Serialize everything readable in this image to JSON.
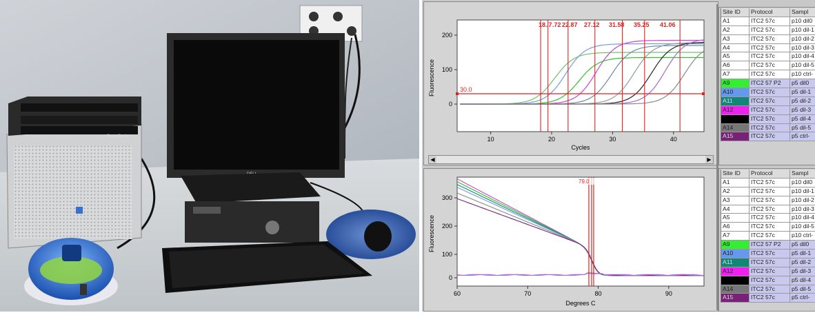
{
  "amplification_chart": {
    "ylabel": "Fluorescence",
    "xlabel": "Cycles",
    "yticks": [
      "200",
      "100",
      "0"
    ],
    "xticks": [
      "10",
      "20",
      "30",
      "40"
    ],
    "threshold_label": "30.0",
    "ct_labels": [
      "18.",
      ".7",
      ".72",
      "22.87",
      "27.12",
      "31.58",
      "35.25",
      "41.06"
    ]
  },
  "melt_chart": {
    "ylabel": "Fluorescence",
    "xlabel": "Degrees C",
    "yticks": [
      "300",
      "200",
      "100",
      "0"
    ],
    "xticks": [
      "60",
      "70",
      "80",
      "90"
    ],
    "peak_label": "79.0"
  },
  "table_top": {
    "headers": [
      "Site ID",
      "Protocol",
      "Sampl"
    ],
    "rows": [
      {
        "site": "A1",
        "protocol": "ITC2 57c",
        "sample": "p10 dil0",
        "color": "#ffffff",
        "style": "plain"
      },
      {
        "site": "A2",
        "protocol": "ITC2 57c",
        "sample": "p10 dil-1",
        "color": "#ffffff",
        "style": "plain"
      },
      {
        "site": "A3",
        "protocol": "ITC2 57c",
        "sample": "p10 dil-2",
        "color": "#ffffff",
        "style": "plain"
      },
      {
        "site": "A4",
        "protocol": "ITC2 57c",
        "sample": "p10 dil-3",
        "color": "#ffffff",
        "style": "plain"
      },
      {
        "site": "A5",
        "protocol": "ITC2 57c",
        "sample": "p10 dil-4",
        "color": "#ffffff",
        "style": "plain"
      },
      {
        "site": "A6",
        "protocol": "ITC2 57c",
        "sample": "p10 dil-5",
        "color": "#ffffff",
        "style": "plain"
      },
      {
        "site": "A7",
        "protocol": "ITC2 57c",
        "sample": "p10 ctrl-",
        "color": "#ffffff",
        "style": "plain"
      },
      {
        "site": "A9",
        "protocol": "ITC2 57 P2",
        "sample": "p5 dil0",
        "color": "#33ee33",
        "style": "shaded"
      },
      {
        "site": "A10",
        "protocol": "ITC2 57c",
        "sample": "p5 dil-1",
        "color": "#6699ee",
        "style": "shaded"
      },
      {
        "site": "A11",
        "protocol": "ITC2 57c",
        "sample": "p5 dil-2",
        "color": "#118877",
        "style": "shaded"
      },
      {
        "site": "A12",
        "protocol": "ITC2 57c",
        "sample": "p5 dil-3",
        "color": "#ee22ee",
        "style": "shaded"
      },
      {
        "site": "",
        "protocol": "ITC2 57c",
        "sample": "p5 dil-4",
        "color": "#000000",
        "style": "shaded"
      },
      {
        "site": "A14",
        "protocol": "ITC2 57c",
        "sample": "p5 dil-5",
        "color": "#777777",
        "style": "shaded"
      },
      {
        "site": "A15",
        "protocol": "ITC2 57c",
        "sample": "p5 ctrl-",
        "color": "#772277",
        "style": "shaded"
      }
    ]
  },
  "table_bottom": {
    "headers": [
      "Site ID",
      "Protocol",
      "Sampl"
    ],
    "rows": [
      {
        "site": "A1",
        "protocol": "ITC2 57c",
        "sample": "p10 dil0",
        "color": "#ffffff",
        "style": "plain"
      },
      {
        "site": "A2",
        "protocol": "ITC2 57c",
        "sample": "p10 dil-1",
        "color": "#ffffff",
        "style": "plain"
      },
      {
        "site": "A3",
        "protocol": "ITC2 57c",
        "sample": "p10 dil-2",
        "color": "#ffffff",
        "style": "plain"
      },
      {
        "site": "A4",
        "protocol": "ITC2 57c",
        "sample": "p10 dil-3",
        "color": "#ffffff",
        "style": "plain"
      },
      {
        "site": "A5",
        "protocol": "ITC2 57c",
        "sample": "p10 dil-4",
        "color": "#ffffff",
        "style": "plain"
      },
      {
        "site": "A6",
        "protocol": "ITC2 57c",
        "sample": "p10 dil-5",
        "color": "#ffffff",
        "style": "plain"
      },
      {
        "site": "A7",
        "protocol": "ITC2 57c",
        "sample": "p10 ctrl-",
        "color": "#ffffff",
        "style": "plain"
      },
      {
        "site": "A9",
        "protocol": "ITC2 57 P2",
        "sample": "p5 dil0",
        "color": "#33ee33",
        "style": "shaded"
      },
      {
        "site": "A10",
        "protocol": "ITC2 57c",
        "sample": "p5 dil-1",
        "color": "#6699ee",
        "style": "shaded"
      },
      {
        "site": "A11",
        "protocol": "ITC2 57c",
        "sample": "p5 dil-2",
        "color": "#118877",
        "style": "shaded"
      },
      {
        "site": "A12",
        "protocol": "ITC2 57c",
        "sample": "p5 dil-3",
        "color": "#ee22ee",
        "style": "shaded"
      },
      {
        "site": "",
        "protocol": "ITC2 57c",
        "sample": "p5 dil-4",
        "color": "#000000",
        "style": "shaded"
      },
      {
        "site": "A14",
        "protocol": "ITC2 57c",
        "sample": "p5 dil-5",
        "color": "#777777",
        "style": "shaded"
      },
      {
        "site": "A15",
        "protocol": "ITC2 57c",
        "sample": "p5 ctrl-",
        "color": "#772277",
        "style": "shaded"
      }
    ]
  },
  "photo": {
    "monitor_brand": "DELL",
    "cycler_brand": "SmartCycler"
  },
  "icons": {
    "scroll_left": "◀",
    "scroll_right": "▶",
    "scroll_up": "▲",
    "scroll_down": "▼"
  }
}
